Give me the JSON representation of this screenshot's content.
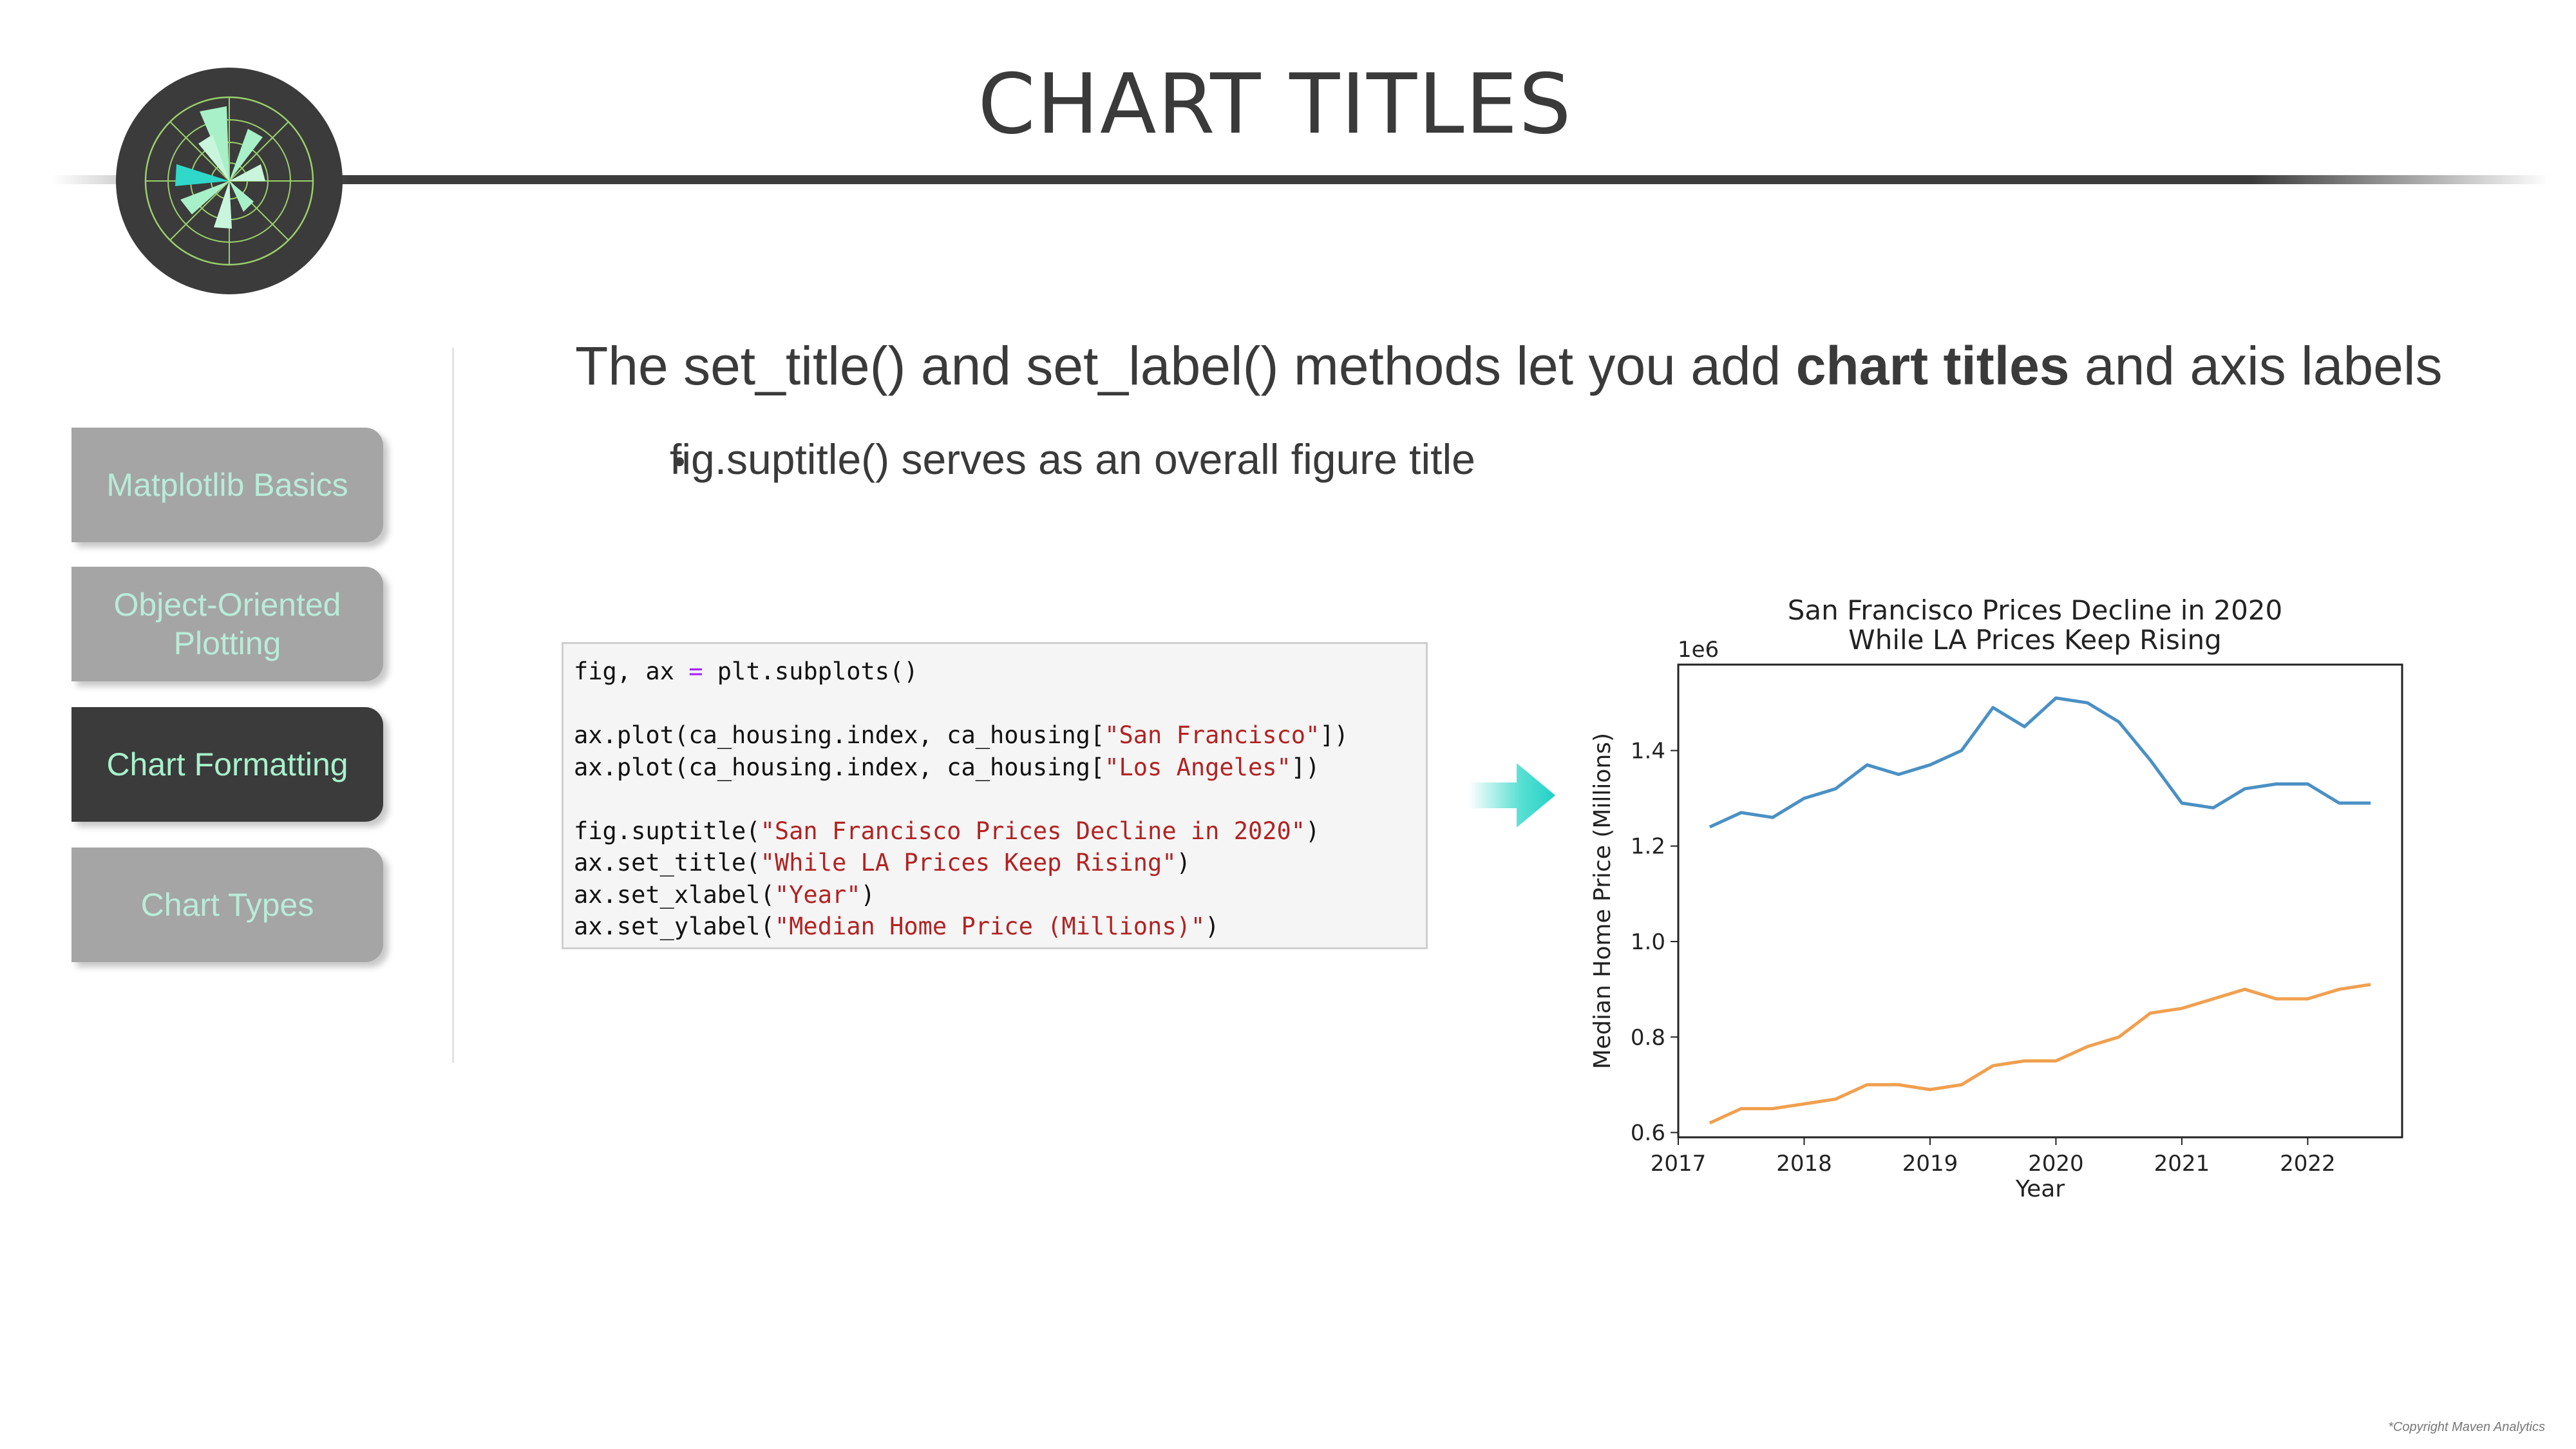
{
  "page": {
    "title": "CHART TITLES",
    "copyright": "*Copyright Maven Analytics"
  },
  "colors": {
    "nav_bg": "#a5a5a5",
    "nav_active_bg": "#3b3b3b",
    "nav_text": "#b9ecd9",
    "accent_teal": "#2fd8c8",
    "series_sf": "#4a90c4",
    "series_la": "#f0a050"
  },
  "sidebar": {
    "items": [
      {
        "label": "Matplotlib Basics",
        "active": false
      },
      {
        "label": "Object-Oriented Plotting",
        "active": false
      },
      {
        "label": "Chart Formatting",
        "active": true
      },
      {
        "label": "Chart Types",
        "active": false
      }
    ]
  },
  "main": {
    "headline_pre": "The set_title() and set_label() methods let you add ",
    "headline_bold": "chart titles",
    "headline_post": " and axis labels",
    "bullet": "fig.suptitle() serves as an overall figure title"
  },
  "code": {
    "line1": {
      "a": "fig, ax ",
      "op": "=",
      "b": " plt.subplots()"
    },
    "line2": {
      "a": "ax.plot(ca_housing.index, ca_housing[",
      "s": "\"San Francisco\"",
      "b": "])"
    },
    "line3": {
      "a": "ax.plot(ca_housing.index, ca_housing[",
      "s": "\"Los Angeles\"",
      "b": "])"
    },
    "line4": {
      "a": "fig.suptitle(",
      "s": "\"San Francisco Prices Decline in 2020\"",
      "b": ")"
    },
    "line5": {
      "a": "ax.set_title(",
      "s": "\"While LA Prices Keep Rising\"",
      "b": ")"
    },
    "line6": {
      "a": "ax.set_xlabel(",
      "s": "\"Year\"",
      "b": ")"
    },
    "line7": {
      "a": "ax.set_ylabel(",
      "s": "\"Median Home Price (Millions)\"",
      "b": ")"
    }
  },
  "icons": {
    "logo": "polar-chart-logo-icon",
    "arrow": "arrow-right-icon"
  },
  "chart_data": {
    "type": "line",
    "title": "San Francisco Prices Decline in 2020",
    "subtitle": "While LA Prices Keep Rising",
    "xlabel": "Year",
    "ylabel": "Median Home Price (Millions)",
    "offset_label": "1e6",
    "xlim": [
      2017.0,
      2022.75
    ],
    "ylim": [
      0.59,
      1.58
    ],
    "x_ticks": [
      "2017",
      "2018",
      "2019",
      "2020",
      "2021",
      "2022"
    ],
    "y_ticks": [
      "0.6",
      "0.8",
      "1.0",
      "1.2",
      "1.4"
    ],
    "x": [
      2017.25,
      2017.5,
      2017.75,
      2018.0,
      2018.25,
      2018.5,
      2018.75,
      2019.0,
      2019.25,
      2019.5,
      2019.75,
      2020.0,
      2020.25,
      2020.5,
      2020.75,
      2021.0,
      2021.25,
      2021.5,
      2021.75,
      2022.0,
      2022.25,
      2022.5
    ],
    "series": [
      {
        "values": [
          1.24,
          1.27,
          1.26,
          1.3,
          1.32,
          1.37,
          1.35,
          1.37,
          1.4,
          1.49,
          1.45,
          1.51,
          1.5,
          1.46,
          1.38,
          1.29,
          1.28,
          1.32,
          1.33,
          1.33,
          1.29,
          1.29
        ],
        "color": "#4a90c4"
      },
      {
        "values": [
          0.62,
          0.65,
          0.65,
          0.66,
          0.67,
          0.7,
          0.7,
          0.69,
          0.7,
          0.74,
          0.75,
          0.75,
          0.78,
          0.8,
          0.85,
          0.86,
          0.88,
          0.9,
          0.88,
          0.88,
          0.9,
          0.91
        ],
        "color": "#f0a050"
      }
    ]
  }
}
